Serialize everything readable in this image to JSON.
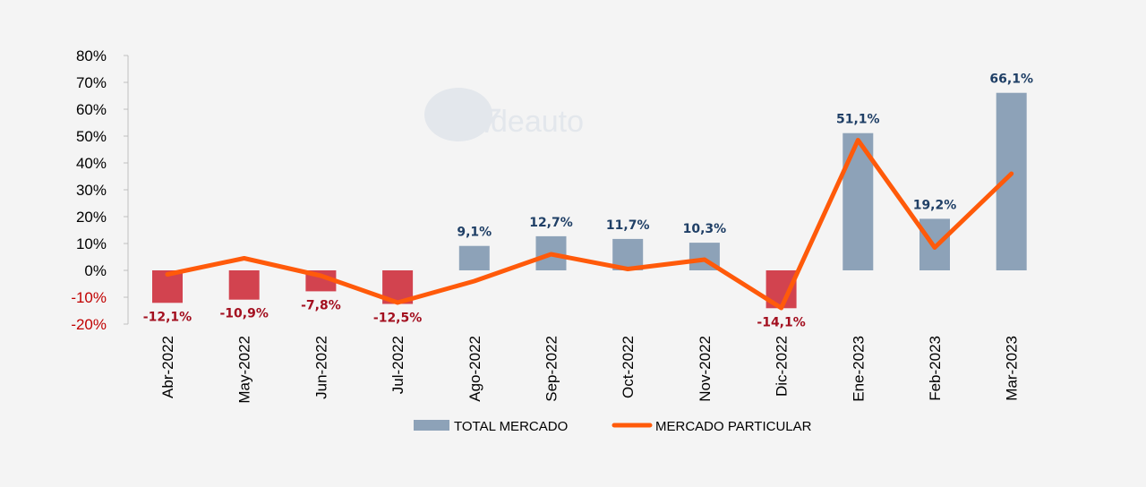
{
  "watermark": "deauto",
  "colors": {
    "total_pos": "#8da2b8",
    "total_neg": "#d2434f",
    "line": "#ff5a0a",
    "label_pos": "#1f3f66",
    "label_neg": "#a30f1f",
    "tick_pos": "#000000",
    "tick_neg": "#c00000",
    "legend_bar": "#8da2b8"
  },
  "chart_data": {
    "type": "bar",
    "categories": [
      "Abr-2022",
      "May-2022",
      "Jun-2022",
      "Jul-2022",
      "Ago-2022",
      "Sep-2022",
      "Oct-2022",
      "Nov-2022",
      "Dic-2022",
      "Ene-2023",
      "Feb-2023",
      "Mar-2023"
    ],
    "ylim": [
      -20,
      80
    ],
    "yticks": [
      -20,
      -10,
      0,
      10,
      20,
      30,
      40,
      50,
      60,
      70,
      80
    ],
    "ytick_labels": [
      "-20%",
      "-10%",
      "0%",
      "10%",
      "20%",
      "30%",
      "40%",
      "50%",
      "60%",
      "70%",
      "80%"
    ],
    "series": [
      {
        "name": "TOTAL MERCADO",
        "kind": "bar",
        "values": [
          -12.1,
          -10.9,
          -7.8,
          -12.5,
          9.1,
          12.7,
          11.7,
          10.3,
          -14.1,
          51.1,
          19.2,
          66.1
        ],
        "labels": [
          "-12,1%",
          "-10,9%",
          "-7,8%",
          "-12,5%",
          "9,1%",
          "12,7%",
          "11,7%",
          "10,3%",
          "-14,1%",
          "51,1%",
          "19,2%",
          "66,1%"
        ]
      },
      {
        "name": "MERCADO PARTICULAR",
        "kind": "line",
        "values": [
          -1.5,
          4.5,
          -2,
          -12,
          -4,
          6,
          0.5,
          4,
          -14,
          48.5,
          8.5,
          36
        ]
      }
    ],
    "legend_position": "bottom",
    "grid": false
  }
}
